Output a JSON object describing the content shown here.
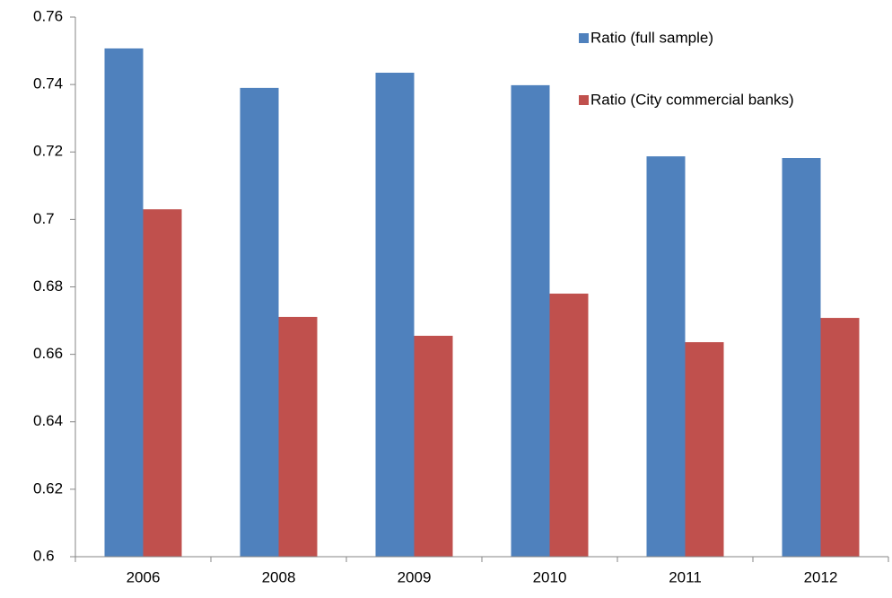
{
  "chart_data": {
    "type": "bar",
    "categories": [
      "2006",
      "2008",
      "2009",
      "2010",
      "2011",
      "2012"
    ],
    "series": [
      {
        "name": "Ratio (full sample)",
        "color": "#4f81bd",
        "values": [
          0.7507,
          0.739,
          0.7435,
          0.7398,
          0.7187,
          0.7182
        ]
      },
      {
        "name": "Ratio (City commercial banks)",
        "color": "#c0504d",
        "values": [
          0.703,
          0.6711,
          0.6655,
          0.678,
          0.6636,
          0.6708
        ]
      }
    ],
    "ylim": [
      0.6,
      0.76
    ],
    "yticks": [
      0.6,
      0.62,
      0.64,
      0.66,
      0.68,
      0.7,
      0.72,
      0.74,
      0.76
    ],
    "grid": false,
    "legend": "upper right"
  }
}
